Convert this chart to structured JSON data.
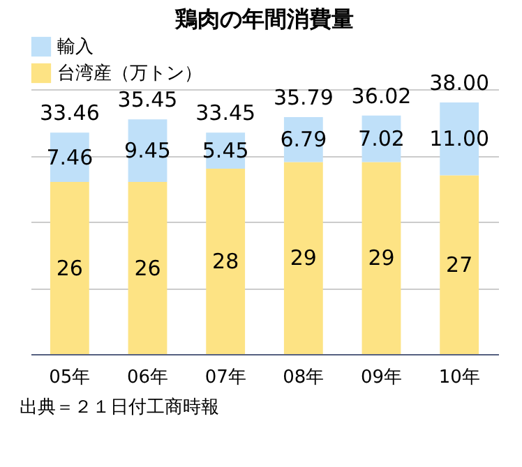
{
  "chart_data": {
    "type": "bar",
    "title": "鶏肉の年間消費量",
    "stacked": true,
    "categories": [
      "05年",
      "06年",
      "07年",
      "08年",
      "09年",
      "10年"
    ],
    "series": [
      {
        "name": "台湾産（万トン）",
        "color": "#fde384",
        "values": [
          26,
          26,
          28,
          29,
          29,
          27
        ],
        "value_labels": [
          "26",
          "26",
          "28",
          "29",
          "29",
          "27"
        ]
      },
      {
        "name": "輸入",
        "color": "#bfe0f9",
        "values": [
          7.46,
          9.45,
          5.45,
          6.79,
          7.02,
          11.0
        ],
        "value_labels": [
          "7.46",
          "9.45",
          "5.45",
          "6.79",
          "7.02",
          "11.00"
        ]
      }
    ],
    "totals": [
      "33.46",
      "35.45",
      "33.45",
      "35.79",
      "36.02",
      "38.00"
    ],
    "grid": "y",
    "tick_labels": "x",
    "legend": "top left",
    "annotations": [
      "出典＝２１日付工商時報"
    ]
  }
}
